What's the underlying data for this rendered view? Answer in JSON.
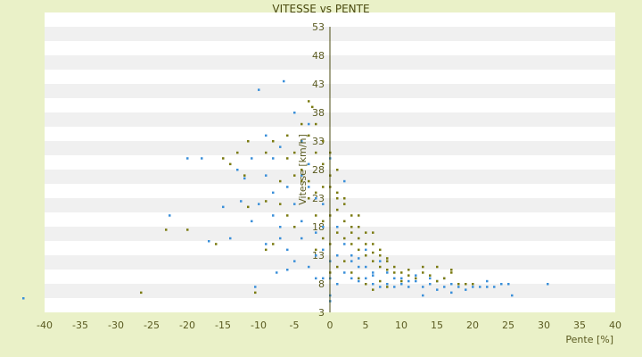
{
  "chart_data": {
    "type": "scatter",
    "title": "VITESSE vs PENTE",
    "xlabel": "Pente [%]",
    "ylabel": "Vitesse [km/h]",
    "xlim": [
      -40,
      40
    ],
    "ylim": [
      3,
      53
    ],
    "xticks": [
      -40,
      -35,
      -30,
      -25,
      -20,
      -15,
      -10,
      -5,
      0,
      5,
      10,
      15,
      20,
      25,
      30,
      35,
      40
    ],
    "yticks": [
      3,
      8,
      13,
      18,
      23,
      28,
      33,
      38,
      43,
      48,
      53
    ],
    "yticks_printed": [
      "3",
      "8",
      "13",
      "18",
      "23",
      "28",
      "33",
      "38",
      "43",
      "48",
      "53"
    ],
    "grid": "horizontal bands",
    "legend": "none",
    "colors": {
      "background": "#eaf1c8",
      "plot_band_light": "#ffffff",
      "plot_band_dark": "#f0f0f0",
      "series_1": "#3a8fd9",
      "series_2": "#7a7a10",
      "axis": "#4a4a10",
      "title": "#4a4a10"
    },
    "series": [
      {
        "points": [
          [
            -43,
            5.5
          ],
          [
            -10.5,
            7.5
          ],
          [
            -7.5,
            10
          ],
          [
            -6,
            10.5
          ],
          [
            -17,
            15.5
          ],
          [
            -22.5,
            20
          ],
          [
            -15,
            21.5
          ],
          [
            -12.5,
            22.5
          ],
          [
            -20,
            30
          ],
          [
            -18,
            30
          ],
          [
            -10,
            42
          ],
          [
            -6.5,
            43.5
          ],
          [
            -9,
            34
          ],
          [
            -3,
            36
          ],
          [
            -13,
            28
          ],
          [
            -12,
            26.5
          ],
          [
            -8,
            24
          ],
          [
            -5,
            22
          ],
          [
            -4,
            19
          ],
          [
            -2,
            17
          ],
          [
            -1,
            14
          ],
          [
            0,
            9
          ],
          [
            0,
            6
          ],
          [
            0,
            5
          ],
          [
            1,
            8
          ],
          [
            2,
            10
          ],
          [
            3,
            12
          ],
          [
            4,
            12.5
          ],
          [
            5,
            9
          ],
          [
            6,
            8
          ],
          [
            7,
            7.5
          ],
          [
            8,
            8
          ],
          [
            9,
            7.5
          ],
          [
            10,
            8
          ],
          [
            11,
            7.5
          ],
          [
            12,
            8.5
          ],
          [
            13,
            7.5
          ],
          [
            14,
            8
          ],
          [
            15,
            8.5
          ],
          [
            16,
            7.5
          ],
          [
            17,
            8
          ],
          [
            18,
            7.5
          ],
          [
            19,
            8
          ],
          [
            20,
            7.5
          ],
          [
            21,
            7.5
          ],
          [
            22,
            7.5
          ],
          [
            23,
            7.5
          ],
          [
            24,
            8
          ],
          [
            25,
            8
          ],
          [
            25.5,
            6
          ],
          [
            30.5,
            8
          ],
          [
            -14,
            16
          ],
          [
            -11,
            19
          ],
          [
            -9,
            15
          ],
          [
            -7,
            18
          ],
          [
            -6,
            25
          ],
          [
            -4,
            27
          ],
          [
            -3,
            25
          ],
          [
            -2,
            23
          ],
          [
            -1,
            22
          ],
          [
            1,
            18
          ],
          [
            2,
            15
          ],
          [
            3,
            13
          ],
          [
            4,
            11
          ],
          [
            5,
            11
          ],
          [
            6,
            10
          ],
          [
            -8,
            30
          ],
          [
            -11,
            30
          ],
          [
            -7,
            32
          ],
          [
            -5,
            38
          ],
          [
            -4,
            33
          ],
          [
            -3,
            29
          ],
          [
            0,
            30
          ],
          [
            1,
            28
          ],
          [
            2,
            26
          ],
          [
            -2,
            13
          ],
          [
            -3,
            11
          ],
          [
            -1,
            9
          ],
          [
            0,
            12
          ],
          [
            1,
            13
          ],
          [
            8,
            10
          ],
          [
            10,
            9
          ],
          [
            12,
            9.5
          ],
          [
            14,
            9
          ],
          [
            16,
            9
          ],
          [
            -6,
            14
          ],
          [
            -4,
            16
          ],
          [
            -5,
            12
          ],
          [
            -9,
            27
          ],
          [
            -10,
            22
          ],
          [
            -8,
            20
          ],
          [
            -7,
            16
          ],
          [
            -2,
            9
          ],
          [
            3,
            9
          ],
          [
            4,
            8.5
          ],
          [
            6,
            9.5
          ],
          [
            9,
            9
          ],
          [
            11,
            8.5
          ],
          [
            13,
            6
          ],
          [
            15,
            7
          ],
          [
            17,
            6.5
          ],
          [
            19,
            7
          ],
          [
            22,
            8.5
          ],
          [
            7,
            12
          ],
          [
            5,
            14
          ],
          [
            -1,
            18
          ]
        ]
      },
      {
        "points": [
          [
            -26.5,
            6.5
          ],
          [
            -10.5,
            6.5
          ],
          [
            -23,
            17.5
          ],
          [
            -20,
            17.5
          ],
          [
            -16,
            15
          ],
          [
            -11.5,
            21.5
          ],
          [
            -9,
            22.5
          ],
          [
            -13,
            31
          ],
          [
            -11.5,
            33
          ],
          [
            -8,
            33
          ],
          [
            -5,
            31
          ],
          [
            -3,
            40
          ],
          [
            -2.5,
            39
          ],
          [
            -2,
            36
          ],
          [
            -1,
            33
          ],
          [
            0,
            31
          ],
          [
            1,
            28
          ],
          [
            -4,
            28
          ],
          [
            -3,
            26
          ],
          [
            -2,
            24
          ],
          [
            -1,
            25
          ],
          [
            0,
            25
          ],
          [
            1,
            24
          ],
          [
            2,
            22
          ],
          [
            3,
            20
          ],
          [
            4,
            18
          ],
          [
            5,
            17
          ],
          [
            6,
            15
          ],
          [
            7,
            13
          ],
          [
            8,
            12
          ],
          [
            9,
            11
          ],
          [
            10,
            10
          ],
          [
            11,
            9.5
          ],
          [
            12,
            9
          ],
          [
            13,
            10
          ],
          [
            14,
            9.5
          ],
          [
            15,
            8.5
          ],
          [
            16,
            9
          ],
          [
            17,
            10
          ],
          [
            18,
            8
          ],
          [
            19,
            8
          ],
          [
            20,
            8
          ],
          [
            -15,
            30
          ],
          [
            -14,
            29
          ],
          [
            -12,
            27
          ],
          [
            -6,
            30
          ],
          [
            -5,
            27
          ],
          [
            -4,
            26
          ],
          [
            -3,
            23
          ],
          [
            -2,
            20
          ],
          [
            -1,
            19
          ],
          [
            0,
            20
          ],
          [
            1,
            17
          ],
          [
            2,
            16
          ],
          [
            3,
            15
          ],
          [
            4,
            14
          ],
          [
            5,
            13
          ],
          [
            6,
            12
          ],
          [
            7,
            11
          ],
          [
            8,
            10.5
          ],
          [
            9,
            10
          ],
          [
            -7,
            22
          ],
          [
            -6,
            20
          ],
          [
            -5,
            18
          ],
          [
            -8,
            15
          ],
          [
            -9,
            14
          ],
          [
            2,
            12
          ],
          [
            3,
            10
          ],
          [
            4,
            9
          ],
          [
            5,
            8
          ],
          [
            6,
            7
          ],
          [
            7,
            8.5
          ],
          [
            8,
            7.5
          ],
          [
            10,
            8.5
          ],
          [
            11,
            10.5
          ],
          [
            13,
            11
          ],
          [
            15,
            11
          ],
          [
            17,
            10.5
          ],
          [
            -1,
            29
          ],
          [
            0,
            27
          ],
          [
            1,
            23
          ],
          [
            2,
            19
          ],
          [
            3,
            17
          ],
          [
            4,
            16
          ],
          [
            5,
            15
          ],
          [
            6,
            13.5
          ],
          [
            7,
            14
          ],
          [
            8,
            12.5
          ],
          [
            -3,
            34
          ],
          [
            -2,
            31
          ],
          [
            -4,
            36
          ],
          [
            -6,
            34
          ],
          [
            -7,
            26
          ],
          [
            -9,
            31
          ],
          [
            1,
            21
          ],
          [
            2,
            23
          ],
          [
            3,
            18
          ],
          [
            4,
            20
          ],
          [
            6,
            17
          ],
          [
            0,
            15
          ],
          [
            -1,
            16
          ],
          [
            -2,
            14
          ],
          [
            1,
            11
          ],
          [
            0,
            10
          ]
        ]
      }
    ]
  }
}
